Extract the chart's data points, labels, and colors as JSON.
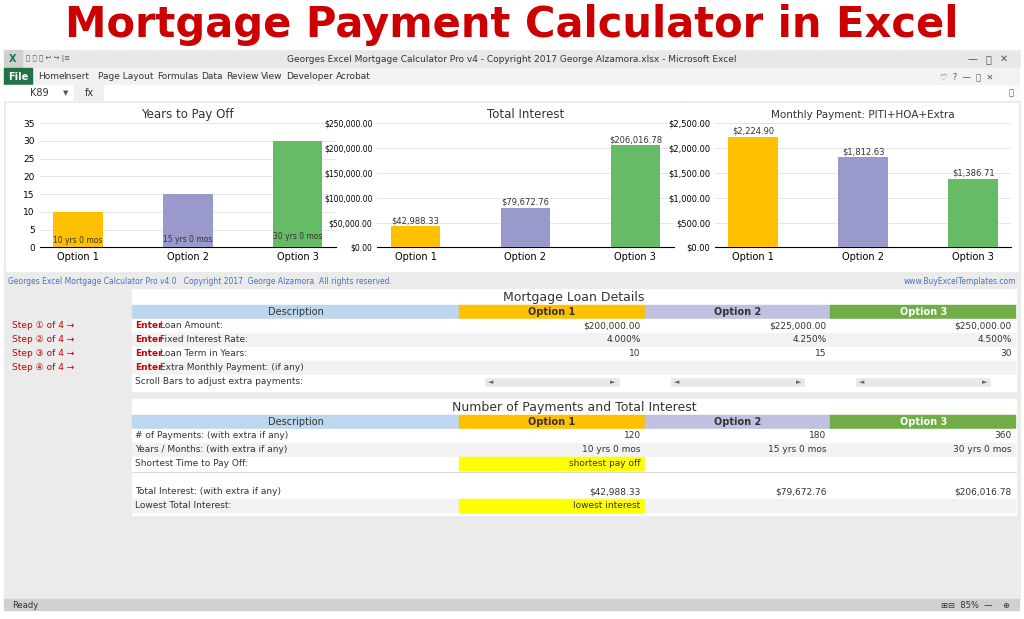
{
  "title": "Mortgage Payment Calculator in Excel",
  "title_color": "#CC0000",
  "bg_color": "#FFFFFF",
  "bar_colors": [
    "#FFC000",
    "#9999CC",
    "#66BB66"
  ],
  "years_to_pay": [
    10,
    15,
    30
  ],
  "years_bar_labels": [
    "10 yrs 0 mos",
    "15 yrs 0 mos",
    "30 yrs 0 mos"
  ],
  "total_interest": [
    42988.33,
    79672.76,
    206016.78
  ],
  "total_interest_labels": [
    "$42,988.33",
    "$79,672.76",
    "$206,016.78"
  ],
  "monthly_payment": [
    2224.9,
    1812.63,
    1386.71
  ],
  "monthly_payment_labels": [
    "$2,224.90",
    "$1,812.63",
    "$1,386.71"
  ],
  "chart1_title": "Years to Pay Off",
  "chart2_title": "Total Interest",
  "chart3_title": "Monthly Payment: PITI+HOA+Extra",
  "options": [
    "Option 1",
    "Option 2",
    "Option 3"
  ],
  "excel_title_bar": "Georges Excel Mortgage Calculator Pro v4 - Copyright 2017 George Alzamora.xlsx - Microsoft Excel",
  "ribbon_tabs": [
    "Home",
    "Insert",
    "Page Layout",
    "Formulas",
    "Data",
    "Review",
    "View",
    "Developer",
    "Acrobat"
  ],
  "cell_ref": "K89",
  "footer_left": "Georges Excel Mortgage Calculator Pro v4.0   Copyright 2017  George Alzamora  All rights reserved.",
  "footer_right": "www.BuyExcelTemplates.com",
  "table1_title": "Mortgage Loan Details",
  "table1_headers": [
    "Description",
    "Option 1",
    "Option 2",
    "Option 3"
  ],
  "table1_rows": [
    [
      "Enter Loan Amount:",
      "$200,000.00",
      "$225,000.00",
      "$250,000.00"
    ],
    [
      "Enter Fixed Interest Rate:",
      "4.000%",
      "4.250%",
      "4.500%"
    ],
    [
      "Enter Loan Term in Years:",
      "10",
      "15",
      "30"
    ],
    [
      "Enter Extra Monthly Payment: (if any)",
      "",
      "",
      ""
    ],
    [
      "Scroll Bars to adjust extra payments:",
      "scroll",
      "scroll",
      "scroll"
    ]
  ],
  "table2_title": "Number of Payments and Total Interest",
  "table2_headers": [
    "Description",
    "Option 1",
    "Option 2",
    "Option 3"
  ],
  "table2_rows": [
    [
      "# of Payments: (with extra if any)",
      "120",
      "180",
      "360"
    ],
    [
      "Years / Months: (with extra if any)",
      "10 yrs 0 mos",
      "15 yrs 0 mos",
      "30 yrs 0 mos"
    ],
    [
      "Shortest Time to Pay Off:",
      "shortest pay off",
      "",
      ""
    ],
    [
      "",
      "",
      "",
      ""
    ],
    [
      "Total Interest: (with extra if any)",
      "$42,988.33",
      "$79,672.76",
      "$206,016.78"
    ],
    [
      "Lowest Total Interest:",
      "lowest interest",
      "",
      ""
    ]
  ],
  "steps": [
    "Step ① of 4 →",
    "Step ② of 4 →",
    "Step ③ of 4 →",
    "Step ④ of 4 →"
  ],
  "header_bg": "#BDD7EE",
  "opt1_bg": "#FFC000",
  "opt2_bg": "#C0C0E0",
  "opt3_bg": "#70AD47",
  "yellow_highlight": "#FFFF00",
  "y_ticks_years": [
    0,
    5,
    10,
    15,
    20,
    25,
    30,
    35
  ],
  "y_ticks_interest": [
    0,
    50000,
    100000,
    150000,
    200000,
    250000
  ],
  "y_ticks_monthly": [
    0,
    500,
    1000,
    1500,
    2000,
    2500
  ]
}
